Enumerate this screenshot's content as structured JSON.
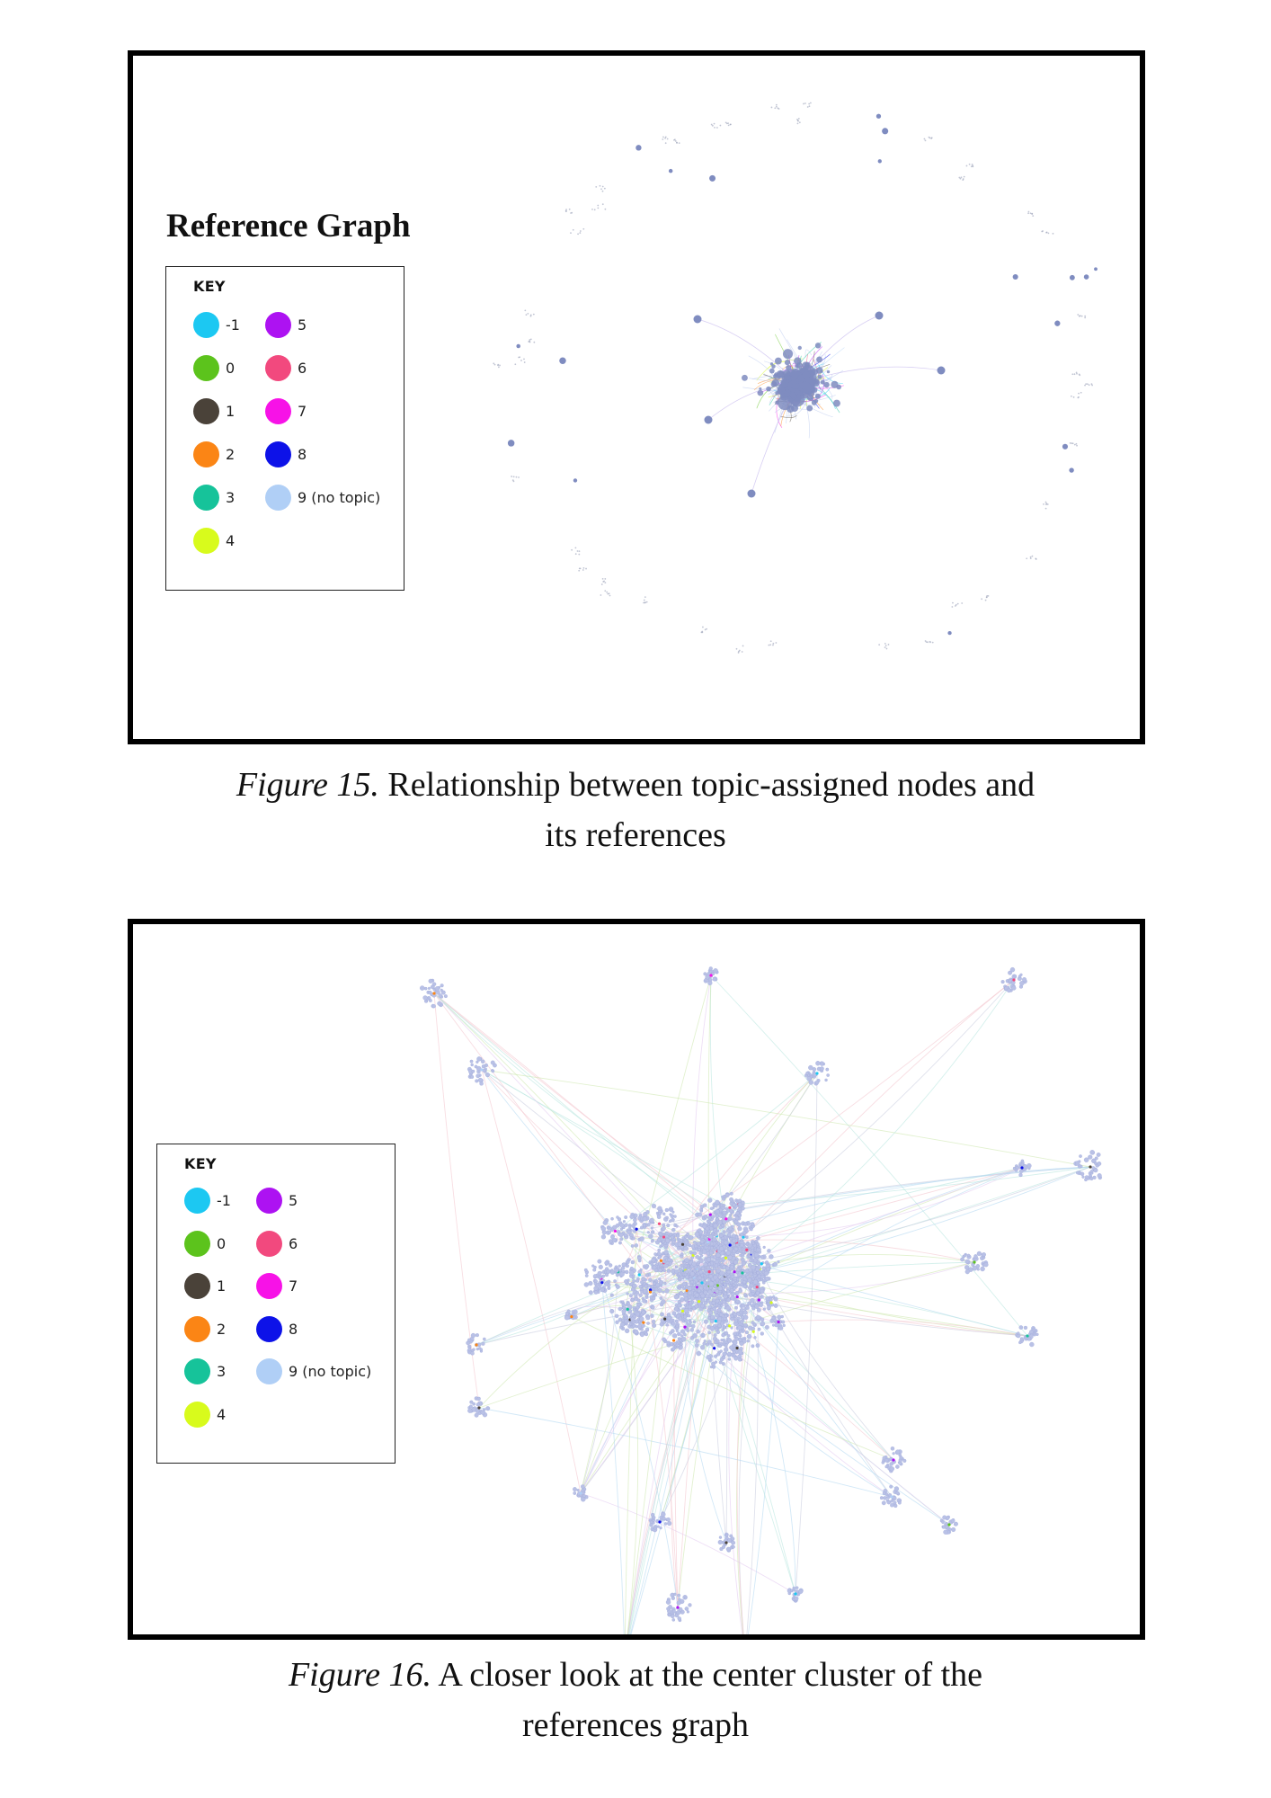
{
  "figures": [
    {
      "graph_title": "Reference Graph",
      "key_title": "KEY",
      "caption_label": "Figure 15.",
      "caption_line1": "Relationship between topic-assigned nodes and",
      "caption_line2": "its references"
    },
    {
      "graph_title": "",
      "key_title": "KEY",
      "caption_label": "Figure 16.",
      "caption_line1": "A closer look at the center cluster of the",
      "caption_line2": "references graph"
    }
  ],
  "legend": [
    {
      "label": "-1",
      "color": "#1cc8f2"
    },
    {
      "label": "0",
      "color": "#5cc31c"
    },
    {
      "label": "1",
      "color": "#4a4239"
    },
    {
      "label": "2",
      "color": "#fb8515"
    },
    {
      "label": "3",
      "color": "#16c39a"
    },
    {
      "label": "4",
      "color": "#d8fb1c"
    },
    {
      "label": "5",
      "color": "#ad12f2"
    },
    {
      "label": "6",
      "color": "#f2497e"
    },
    {
      "label": "7",
      "color": "#f712e7"
    },
    {
      "label": "8",
      "color": "#0d12e8"
    },
    {
      "label": "9 (no topic)",
      "color": "#b0cff6"
    }
  ],
  "node_color": "#7f8cc0",
  "cluster_node_color": "#b9c1e6"
}
